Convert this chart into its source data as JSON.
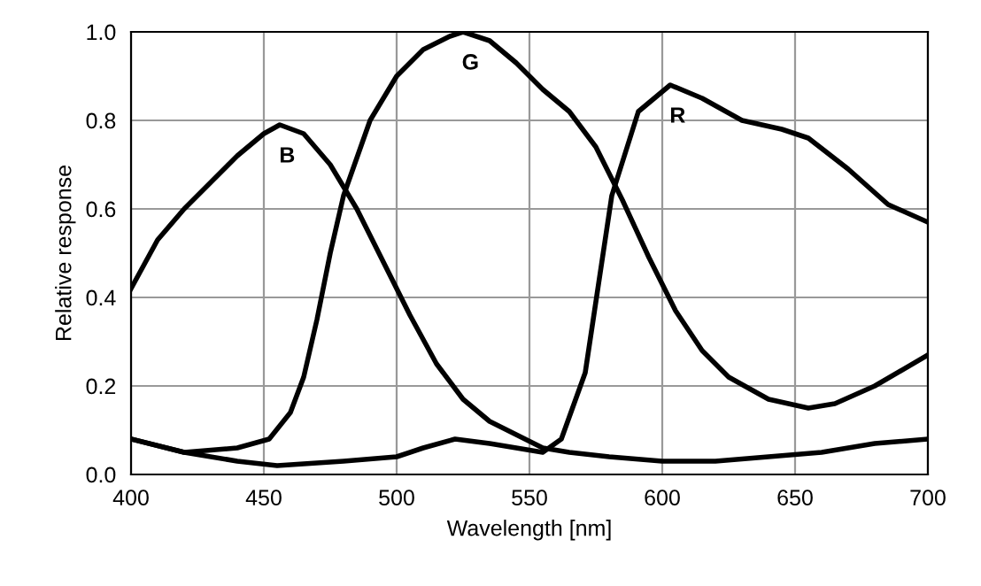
{
  "chart_data": {
    "type": "line",
    "xlabel": "Wavelength [nm]",
    "ylabel": "Relative response",
    "xlim": [
      400,
      700
    ],
    "ylim": [
      0,
      1.0
    ],
    "xticks": [
      400,
      450,
      500,
      550,
      600,
      650,
      700
    ],
    "yticks": [
      {
        "value": 0,
        "label": "0.0"
      },
      0.2,
      0.4,
      0.6,
      0.8,
      {
        "value": 1.0,
        "label": "1.0"
      }
    ],
    "grid": true,
    "legend": false,
    "series": [
      {
        "name": "B",
        "color": "#000000",
        "x": [
          400,
          410,
          420,
          430,
          440,
          450,
          456,
          465,
          475,
          485,
          495,
          505,
          515,
          525,
          535,
          545,
          555,
          565,
          580,
          600,
          620,
          640,
          660,
          680,
          700
        ],
        "values": [
          0.42,
          0.53,
          0.6,
          0.66,
          0.72,
          0.77,
          0.79,
          0.77,
          0.7,
          0.6,
          0.48,
          0.36,
          0.25,
          0.17,
          0.12,
          0.09,
          0.06,
          0.05,
          0.04,
          0.03,
          0.03,
          0.04,
          0.05,
          0.07,
          0.08
        ]
      },
      {
        "name": "G",
        "color": "#000000",
        "x": [
          400,
          420,
          440,
          452,
          460,
          465,
          470,
          475,
          480,
          490,
          500,
          510,
          520,
          525,
          535,
          545,
          555,
          565,
          575,
          585,
          595,
          605,
          615,
          625,
          640,
          655,
          665,
          680,
          700
        ],
        "values": [
          0.08,
          0.05,
          0.06,
          0.08,
          0.14,
          0.22,
          0.35,
          0.5,
          0.63,
          0.8,
          0.9,
          0.96,
          0.99,
          1.0,
          0.98,
          0.93,
          0.87,
          0.82,
          0.74,
          0.62,
          0.49,
          0.37,
          0.28,
          0.22,
          0.17,
          0.15,
          0.16,
          0.2,
          0.27
        ]
      },
      {
        "name": "R",
        "color": "#000000",
        "x": [
          400,
          420,
          440,
          455,
          480,
          500,
          510,
          522,
          535,
          545,
          555,
          562,
          571,
          581,
          591,
          603,
          615,
          630,
          645,
          655,
          670,
          685,
          700
        ],
        "values": [
          0.08,
          0.05,
          0.03,
          0.02,
          0.03,
          0.04,
          0.06,
          0.08,
          0.07,
          0.06,
          0.05,
          0.08,
          0.23,
          0.63,
          0.82,
          0.88,
          0.85,
          0.8,
          0.78,
          0.76,
          0.69,
          0.61,
          0.57
        ]
      }
    ]
  }
}
